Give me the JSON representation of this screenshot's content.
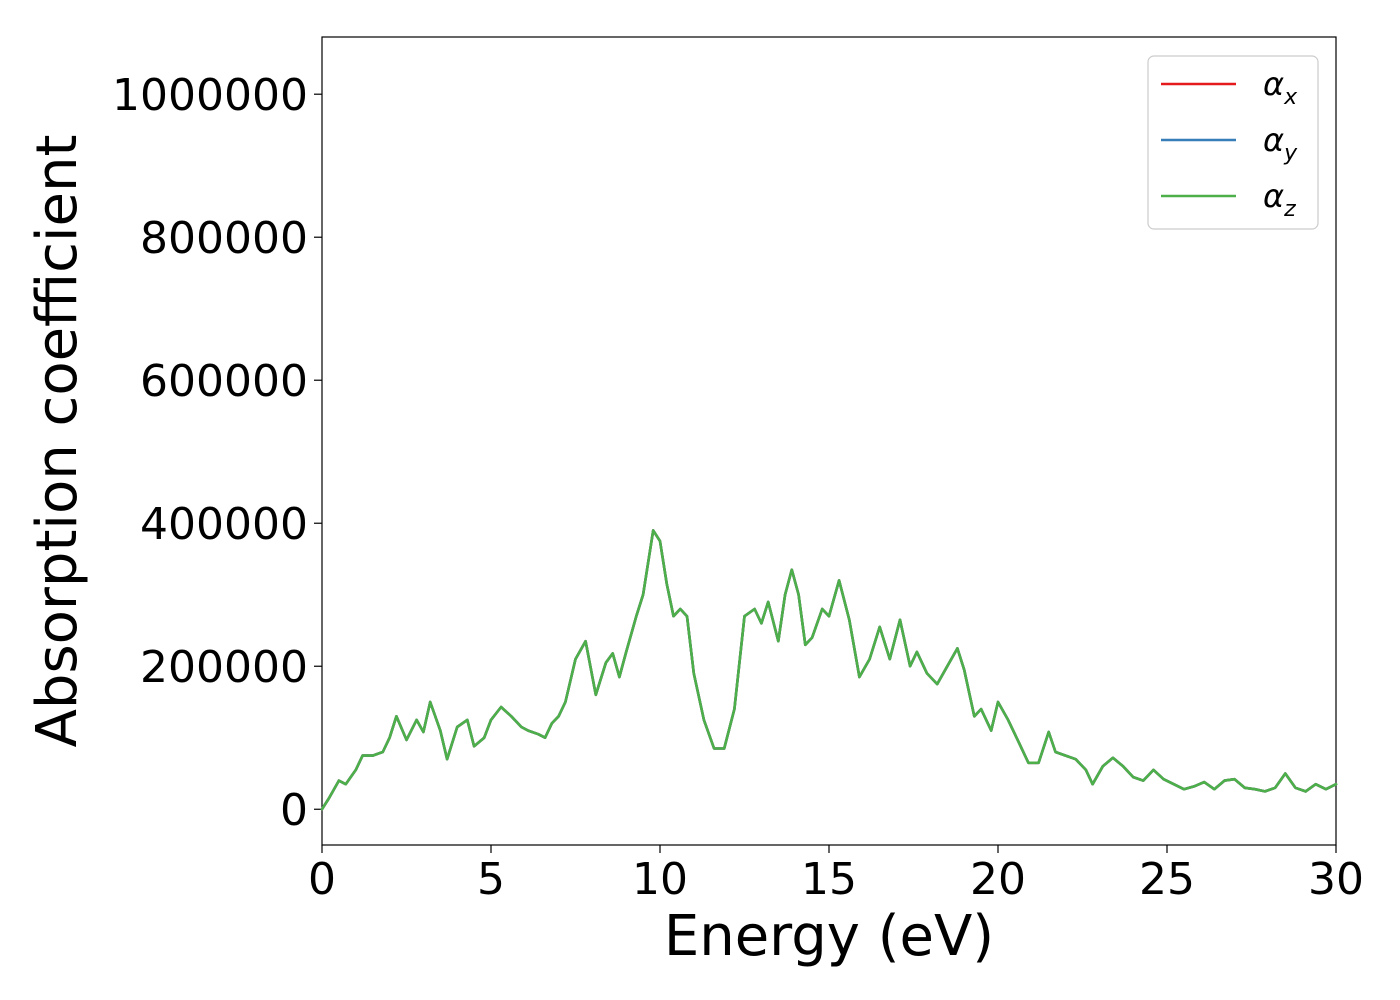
{
  "chart_data": {
    "type": "line",
    "xlabel": "Energy (eV)",
    "ylabel": "Absorption coefficient",
    "xlim": [
      0,
      30
    ],
    "ylim": [
      -50000,
      1080000
    ],
    "xticks": [
      0,
      5,
      10,
      15,
      20,
      25,
      30
    ],
    "xtick_labels": [
      "0",
      "5",
      "10",
      "15",
      "20",
      "25",
      "30"
    ],
    "yticks": [
      0,
      200000,
      400000,
      600000,
      800000,
      1000000
    ],
    "ytick_labels": [
      "0",
      "200000",
      "400000",
      "600000",
      "800000",
      "1000000"
    ],
    "grid": false,
    "legend_position": "top-right",
    "x": [
      0,
      0.2,
      0.5,
      0.7,
      1.0,
      1.2,
      1.5,
      1.8,
      2.0,
      2.2,
      2.5,
      2.8,
      3.0,
      3.2,
      3.5,
      3.7,
      4.0,
      4.3,
      4.5,
      4.8,
      5.0,
      5.3,
      5.6,
      5.9,
      6.1,
      6.4,
      6.6,
      6.8,
      7.0,
      7.2,
      7.5,
      7.8,
      8.1,
      8.4,
      8.6,
      8.8,
      9.0,
      9.3,
      9.5,
      9.8,
      10.0,
      10.2,
      10.4,
      10.6,
      10.8,
      11.0,
      11.3,
      11.6,
      11.9,
      12.2,
      12.5,
      12.8,
      13.0,
      13.2,
      13.5,
      13.7,
      13.9,
      14.1,
      14.3,
      14.5,
      14.8,
      15.0,
      15.3,
      15.6,
      15.9,
      16.2,
      16.5,
      16.8,
      17.1,
      17.4,
      17.6,
      17.9,
      18.2,
      18.5,
      18.8,
      19.0,
      19.3,
      19.5,
      19.8,
      20.0,
      20.3,
      20.6,
      20.9,
      21.2,
      21.5,
      21.7,
      22.0,
      22.3,
      22.6,
      22.8,
      23.1,
      23.4,
      23.7,
      24.0,
      24.3,
      24.6,
      24.9,
      25.2,
      25.5,
      25.8,
      26.1,
      26.4,
      26.7,
      27.0,
      27.3,
      27.6,
      27.9,
      28.2,
      28.5,
      28.8,
      29.1,
      29.4,
      29.7,
      30.0
    ],
    "series": [
      {
        "name": "α_x",
        "color": "#e41a1c"
      },
      {
        "name": "α_y",
        "color": "#377eb8"
      },
      {
        "name": "α_z",
        "color": "#4daf4a"
      }
    ],
    "y": [
      0,
      15000,
      40000,
      35000,
      55000,
      75000,
      75000,
      80000,
      100000,
      130000,
      97000,
      125000,
      108000,
      150000,
      110000,
      70000,
      115000,
      125000,
      88000,
      100000,
      125000,
      143000,
      130000,
      115000,
      110000,
      105000,
      100000,
      120000,
      130000,
      150000,
      210000,
      235000,
      160000,
      205000,
      218000,
      185000,
      220000,
      270000,
      300000,
      390000,
      375000,
      315000,
      270000,
      280000,
      270000,
      190000,
      125000,
      85000,
      85000,
      140000,
      270000,
      280000,
      260000,
      290000,
      235000,
      300000,
      335000,
      300000,
      230000,
      240000,
      280000,
      270000,
      320000,
      265000,
      185000,
      210000,
      255000,
      210000,
      265000,
      200000,
      220000,
      190000,
      175000,
      200000,
      225000,
      195000,
      130000,
      140000,
      110000,
      150000,
      125000,
      95000,
      65000,
      65000,
      108000,
      80000,
      75000,
      70000,
      55000,
      35000,
      60000,
      72000,
      60000,
      45000,
      40000,
      55000,
      42000,
      35000,
      28000,
      32000,
      38000,
      28000,
      40000,
      42000,
      30000,
      28000,
      25000,
      30000,
      50000,
      30000,
      25000,
      35000,
      28000,
      35000
    ]
  }
}
